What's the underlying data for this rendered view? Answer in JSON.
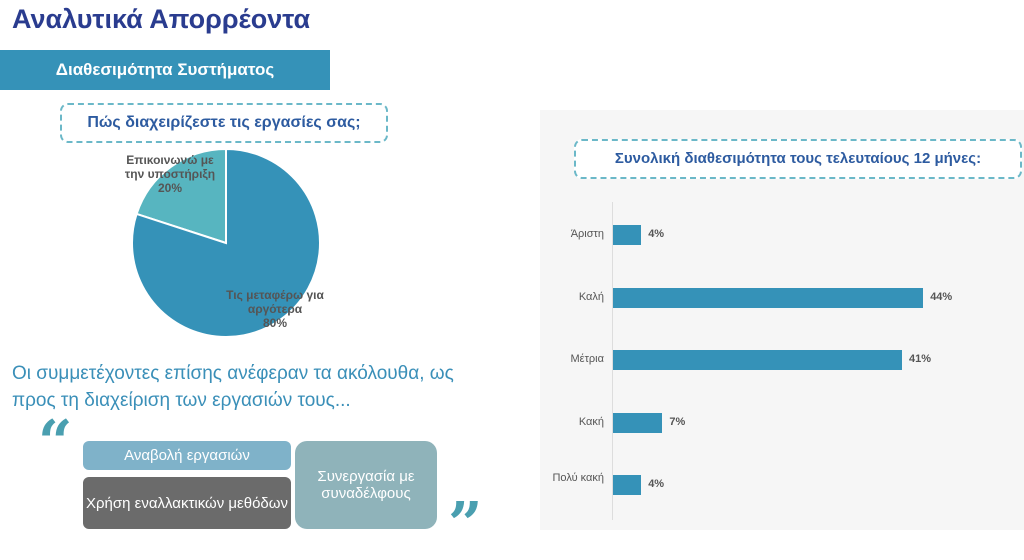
{
  "page": {
    "title": "Αναλυτικά Απορρέοντα",
    "banner": "Διαθεσιμότητα Συστήματος",
    "mentions": "Οι συμμετέχοντες επίσης ανέφεραν τα ακόλουθα, ως προς τη διαχείριση των εργασιών τους...",
    "quote_open": "“",
    "quote_close": "”",
    "pills": [
      "Αναβολή εργασιών",
      "Χρήση εναλλακτικών μεθόδων",
      "Συνεργασία με συναδέλφους"
    ]
  },
  "chart_data": [
    {
      "type": "pie",
      "title": "Πώς διαχειρίζεστε τις εργασίες σας;",
      "slices": [
        {
          "label": "Επικοινωνώ με την υποστήριξη",
          "value": 20,
          "display": "20%",
          "color": "#57b5c0"
        },
        {
          "label": "Τις μεταφέρω για αργότερα",
          "value": 80,
          "display": "80%",
          "color": "#3592b8"
        }
      ]
    },
    {
      "type": "bar",
      "orientation": "horizontal",
      "title": "Συνολική διαθεσιμότητα τους τελευταίους 12 μήνες:",
      "categories": [
        "Άριστη",
        "Καλή",
        "Μέτρια",
        "Κακή",
        "Πολύ κακή"
      ],
      "values": [
        4,
        44,
        41,
        7,
        4
      ],
      "labels": [
        "4%",
        "44%",
        "41%",
        "7%",
        "4%"
      ],
      "xlim": [
        0,
        50
      ],
      "color": "#3592b8"
    }
  ]
}
